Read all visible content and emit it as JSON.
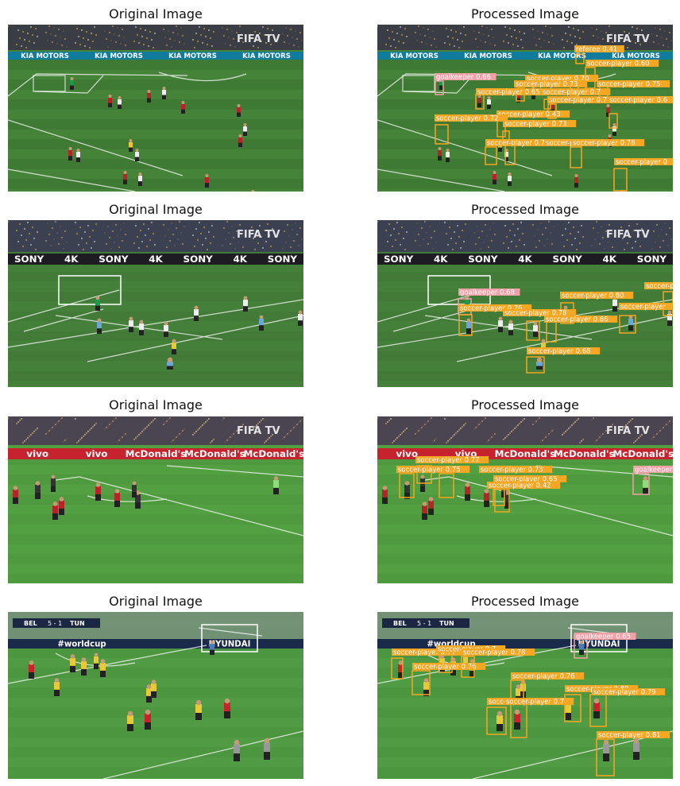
{
  "rows": [
    {
      "original_title": "Original Image",
      "processed_title": "Processed Image",
      "theme": {
        "pitch": "#3f7a34",
        "stripe": "#4a8a3c",
        "stand": "#3a3d44",
        "board": "#0f7c9e",
        "overlay": "FIFA TV"
      },
      "boards": [
        "KIA MOTORS",
        "KIA MOTORS",
        "KIA MOTORS",
        "KIA MOTORS"
      ],
      "detections": [
        {
          "label": "referee 0.41",
          "cls": "referee"
        },
        {
          "label": "soccer-player 0.60",
          "cls": "player"
        },
        {
          "label": "goalkeeper 0.66",
          "cls": "goalkeeper"
        },
        {
          "label": "soccer-player 0.70",
          "cls": "player"
        },
        {
          "label": "soccer-player 0.73",
          "cls": "player"
        },
        {
          "label": "soccer-player 0.75",
          "cls": "player"
        },
        {
          "label": "soccer-player 0.65",
          "cls": "player"
        },
        {
          "label": "soccer-player 0.77",
          "cls": "player"
        },
        {
          "label": "soccer-player 0.6",
          "cls": "player"
        },
        {
          "label": "soccer-player 0.7",
          "cls": "player"
        },
        {
          "label": "soccer-player 0.43",
          "cls": "player"
        },
        {
          "label": "soccer-player 0.72",
          "cls": "player"
        },
        {
          "label": "soccer-player 0.73",
          "cls": "player"
        },
        {
          "label": "soccer-player 0.76",
          "cls": "player"
        },
        {
          "label": "soccer-player 0.7",
          "cls": "player"
        },
        {
          "label": "soccer-player 0.78",
          "cls": "player"
        },
        {
          "label": "soccer-player 0",
          "cls": "player"
        }
      ]
    },
    {
      "original_title": "Original Image",
      "processed_title": "Processed Image",
      "theme": {
        "pitch": "#45803a",
        "stripe": "#3f7634",
        "stand": "#3b4150",
        "board": "#1c1c22",
        "overlay": "FIFA TV"
      },
      "boards": [
        "SONY",
        "4K",
        "SONY",
        "4K",
        "SONY",
        "4K",
        "SONY"
      ],
      "detections": [
        {
          "label": "soccer-player",
          "cls": "player"
        },
        {
          "label": "goalkeeper 0.68",
          "cls": "goalkeeper"
        },
        {
          "label": "soccer-player 0.80",
          "cls": "player"
        },
        {
          "label": "soccer-player",
          "cls": "player"
        },
        {
          "label": "soccer-player 0.76",
          "cls": "player"
        },
        {
          "label": "soccer-player 0.78",
          "cls": "player"
        },
        {
          "label": "soccer-player 0.66",
          "cls": "player"
        },
        {
          "label": "soccer-player 0.68",
          "cls": "player"
        }
      ]
    },
    {
      "original_title": "Original Image",
      "processed_title": "Processed Image",
      "theme": {
        "pitch": "#4f9a3e",
        "stripe": "#58a646",
        "stand": "#4a4550",
        "board": "#c7232e",
        "overlay": "FIFA TV"
      },
      "boards": [
        "vivo",
        "vivo",
        "McDonald's",
        "McDonald's",
        "McDonald's"
      ],
      "detections": [
        {
          "label": "soccer-player 0.77",
          "cls": "player"
        },
        {
          "label": "soccer-player 0.75",
          "cls": "player"
        },
        {
          "label": "soccer-player 0.73",
          "cls": "player"
        },
        {
          "label": "soccer-player 0.65",
          "cls": "player"
        },
        {
          "label": "soccer-player 0.42",
          "cls": "player"
        },
        {
          "label": "goalkeeper",
          "cls": "goalkeeper"
        }
      ]
    },
    {
      "original_title": "Original Image",
      "processed_title": "Processed Image",
      "theme": {
        "pitch": "#4d9640",
        "stripe": "#56a048",
        "stand": "#8a8e98",
        "board": "#1a2a4a",
        "overlay": ""
      },
      "scorebug": {
        "home": "BEL",
        "score": "5 - 1",
        "away": "TUN"
      },
      "boards": [
        "#worldcup",
        "HYUNDAI"
      ],
      "detections": [
        {
          "label": "soccer-player 0.77",
          "cls": "player"
        },
        {
          "label": "soccer-player 0.7",
          "cls": "player"
        },
        {
          "label": "soccer-player 0.78",
          "cls": "player"
        },
        {
          "label": "soccer-player 0.76",
          "cls": "player"
        },
        {
          "label": "goalkeeper 0.65",
          "cls": "goalkeeper"
        },
        {
          "label": "soccer-player 0.76",
          "cls": "player"
        },
        {
          "label": "soccer-player 0.80",
          "cls": "player"
        },
        {
          "label": "soccer-player 0.79",
          "cls": "player"
        },
        {
          "label": "soccer-player 0.85",
          "cls": "player"
        },
        {
          "label": "soccer-player 0.7",
          "cls": "player"
        },
        {
          "label": "soccer-player 0.81",
          "cls": "player"
        }
      ]
    }
  ],
  "colors": {
    "player": "#f5a623",
    "goalkeeper": "#f2a0a8",
    "referee": "#f5a623"
  }
}
